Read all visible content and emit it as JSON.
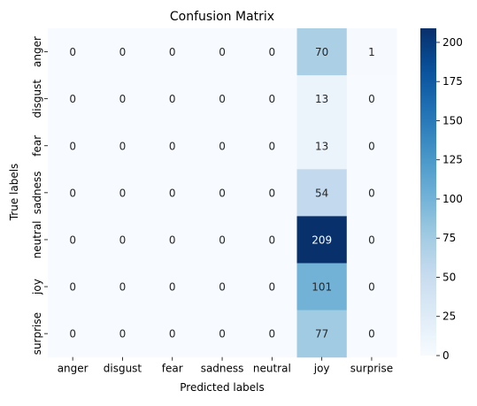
{
  "chart_data": {
    "type": "heatmap",
    "title": "Confusion Matrix",
    "xlabel": "Predicted labels",
    "ylabel": "True labels",
    "x_categories": [
      "anger",
      "disgust",
      "fear",
      "sadness",
      "neutral",
      "joy",
      "surprise"
    ],
    "y_categories": [
      "anger",
      "disgust",
      "fear",
      "sadness",
      "neutral",
      "joy",
      "surprise"
    ],
    "values": [
      [
        0,
        0,
        0,
        0,
        0,
        70,
        1
      ],
      [
        0,
        0,
        0,
        0,
        0,
        13,
        0
      ],
      [
        0,
        0,
        0,
        0,
        0,
        13,
        0
      ],
      [
        0,
        0,
        0,
        0,
        0,
        54,
        0
      ],
      [
        0,
        0,
        0,
        0,
        0,
        209,
        0
      ],
      [
        0,
        0,
        0,
        0,
        0,
        101,
        0
      ],
      [
        0,
        0,
        0,
        0,
        0,
        77,
        0
      ]
    ],
    "colormap": "Blues",
    "vmin": 0,
    "vmax": 209,
    "colorbar_ticks": [
      0,
      25,
      50,
      75,
      100,
      125,
      150,
      175,
      200
    ],
    "annotations": true
  }
}
